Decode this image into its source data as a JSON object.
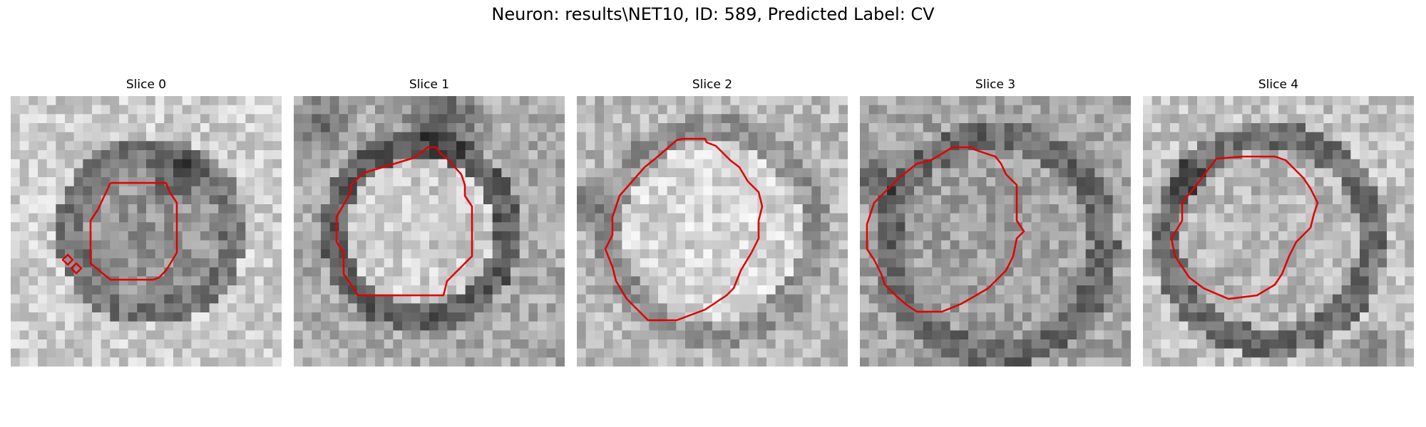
{
  "figure": {
    "title": "Neuron: results\\NET10, ID: 589, Predicted Label: CV",
    "contour_color": "#e00000"
  },
  "panels": [
    {
      "title": "Slice 0"
    },
    {
      "title": "Slice 1"
    },
    {
      "title": "Slice 2"
    },
    {
      "title": "Slice 3"
    },
    {
      "title": "Slice 4"
    }
  ]
}
